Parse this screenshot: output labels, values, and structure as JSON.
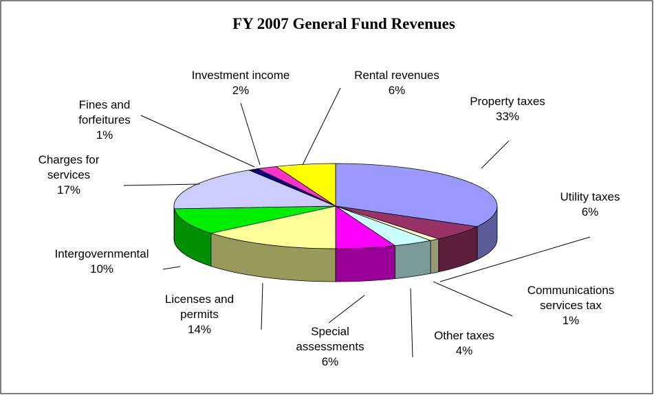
{
  "chart_data": {
    "type": "pie3d",
    "title": "FY 2007 General Fund Revenues",
    "categories": [
      "Property taxes",
      "Utility taxes",
      "Communications services tax",
      "Other taxes",
      "Special assessments",
      "Licenses and permits",
      "Intergovernmental",
      "Charges for services",
      "Fines and forfeitures",
      "Investment income",
      "Rental revenues"
    ],
    "values": [
      33,
      6,
      1,
      4,
      6,
      14,
      10,
      17,
      1,
      2,
      6
    ],
    "value_labels": [
      "33%",
      "6%",
      "1%",
      "4%",
      "6%",
      "14%",
      "10%",
      "17%",
      "1%",
      "2%",
      "6%"
    ],
    "colors": [
      "#9999ff",
      "#993366",
      "#ffffcc",
      "#ccffff",
      "#ff00ff",
      "#ffff99",
      "#00ee00",
      "#ccccff",
      "#000080",
      "#ff33cc",
      "#ffff00"
    ]
  }
}
